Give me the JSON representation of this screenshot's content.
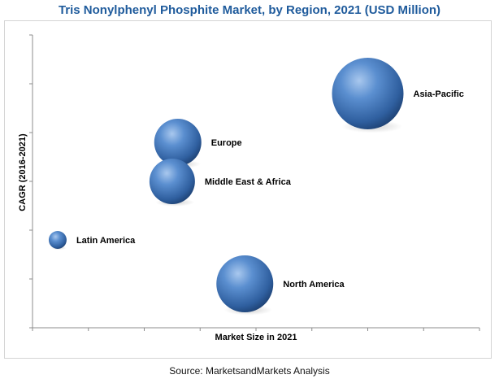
{
  "chart_data": {
    "type": "bubble",
    "title": "Tris Nonylphenyl Phosphite Market, by Region, 2021 (USD Million)",
    "xlabel": "Market Size in 2021",
    "ylabel": "CAGR (2016-2021)",
    "xlim": [
      0,
      8
    ],
    "ylim": [
      0,
      6
    ],
    "grid": false,
    "legend": "none",
    "bubble_color": "#3f79bd",
    "series": [
      {
        "name": "Asia-Pacific",
        "x": 6.0,
        "y": 4.8,
        "size": 44
      },
      {
        "name": "Europe",
        "x": 2.6,
        "y": 3.8,
        "size": 29
      },
      {
        "name": "Middle East & Africa",
        "x": 2.5,
        "y": 3.0,
        "size": 28
      },
      {
        "name": "Latin America",
        "x": 0.45,
        "y": 1.8,
        "size": 11
      },
      {
        "name": "North America",
        "x": 3.8,
        "y": 0.9,
        "size": 35
      }
    ]
  },
  "source": "Source:  MarketsandMarkets Analysis"
}
